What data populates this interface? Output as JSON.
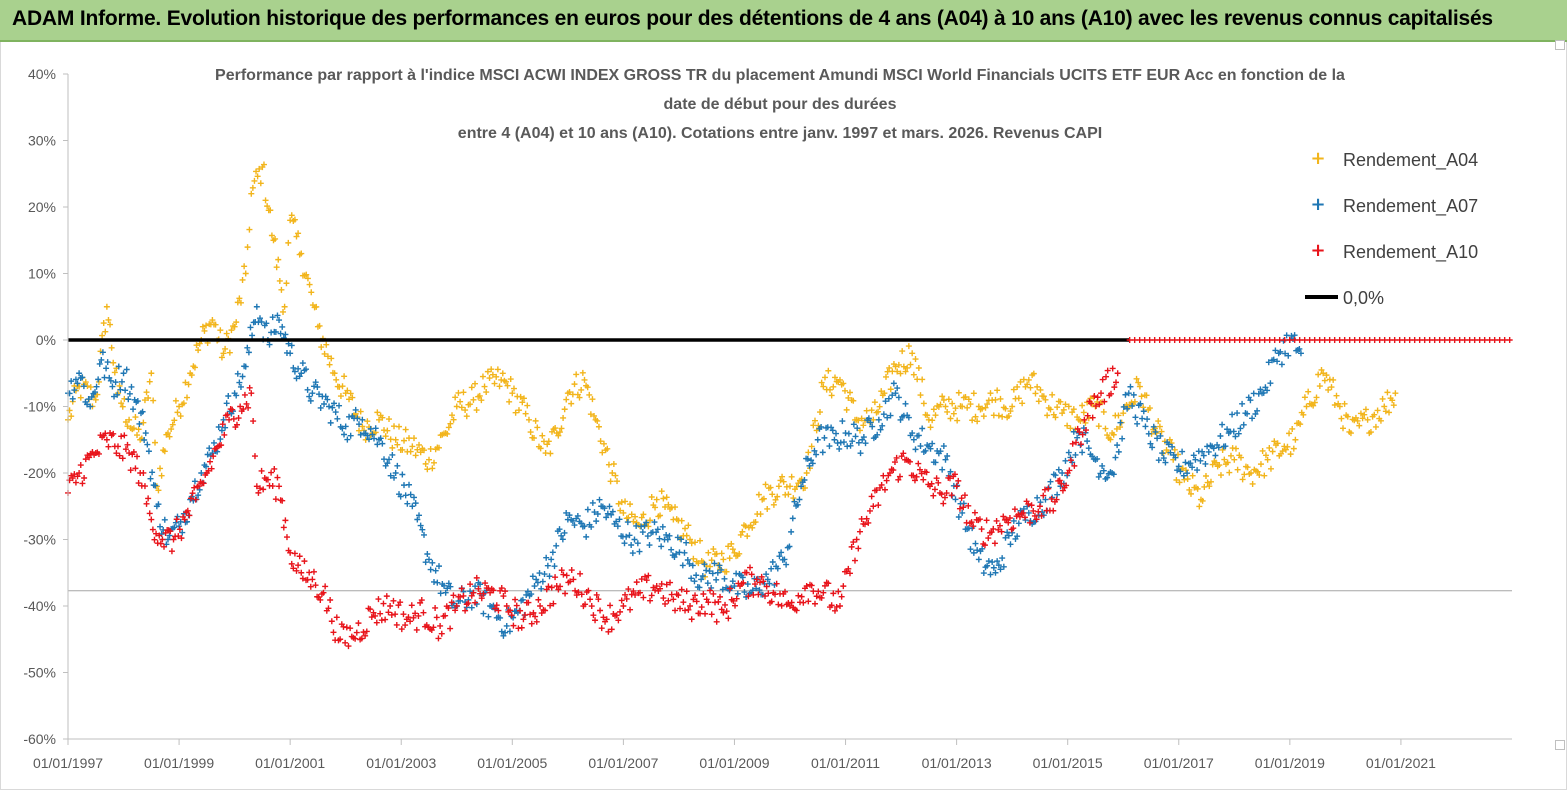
{
  "banner": {
    "title": "ADAM Informe. Evolution historique des performances en euros pour des détentions de 4 ans (A04) à 10 ans (A10) avec les revenus connus capitalisés",
    "background": "#a9d18e"
  },
  "chart_data": {
    "type": "scatter",
    "title_lines": [
      "Performance par rapport à l'indice MSCI ACWI INDEX GROSS TR  du placement Amundi MSCI World Financials UCITS ETF EUR Acc en fonction de la",
      "date de début pour des durées",
      "entre 4 (A04) et 10 ans (A10). Cotations entre janv. 1997 et mars. 2026. Revenus CAPI"
    ],
    "ylim": [
      -60,
      40
    ],
    "ytick_values": [
      40,
      30,
      20,
      10,
      0,
      -10,
      -20,
      -30,
      -40,
      -50,
      -60
    ],
    "ytick_labels": [
      "40%",
      "30%",
      "20%",
      "10%",
      "0%",
      "-10%",
      "-20%",
      "-30%",
      "-40%",
      "-50%",
      "-60%"
    ],
    "xlim": [
      1997.0,
      2023.0
    ],
    "xtick_values": [
      1997,
      1999,
      2001,
      2003,
      2005,
      2007,
      2009,
      2011,
      2013,
      2015,
      2017,
      2019,
      2021
    ],
    "xtick_labels": [
      "01/01/1997",
      "01/01/1999",
      "01/01/2001",
      "01/01/2003",
      "01/01/2005",
      "01/01/2007",
      "01/01/2009",
      "01/01/2011",
      "01/01/2013",
      "01/01/2015",
      "01/01/2017",
      "01/01/2019",
      "01/01/2021"
    ],
    "reference_line": {
      "name": "0,0%",
      "value": 0,
      "color": "#000000"
    },
    "lower_gridline_value": -37.7,
    "legend": {
      "position": "top-right",
      "entries": [
        "Rendement_A04",
        "Rendement_A07",
        "Rendement_A10",
        "0,0%"
      ]
    },
    "series": [
      {
        "name": "Rendement_A04",
        "color": "#f2b51c",
        "x": [
          1997.0,
          1997.2,
          1997.5,
          1997.7,
          1997.9,
          1998.1,
          1998.3,
          1998.5,
          1998.6,
          1998.8,
          1999.0,
          1999.2,
          1999.4,
          1999.6,
          1999.8,
          2000.0,
          2000.2,
          2000.3,
          2000.5,
          2000.7,
          2000.9,
          2001.0,
          2001.2,
          2001.5,
          2001.8,
          2002.0,
          2002.3,
          2002.6,
          2002.9,
          2003.2,
          2003.5,
          2003.8,
          2004.0,
          2004.3,
          2004.5,
          2004.8,
          2005.0,
          2005.3,
          2005.6,
          2005.8,
          2006.0,
          2006.3,
          2006.5,
          2006.8,
          2007.0,
          2007.3,
          2007.6,
          2007.9,
          2008.2,
          2008.5,
          2008.8,
          2009.0,
          2009.2,
          2009.5,
          2009.8,
          2010.0,
          2010.3,
          2010.6,
          2010.9,
          2011.2,
          2011.5,
          2011.7,
          2011.9,
          2012.2,
          2012.5,
          2012.8,
          2013.1,
          2013.4,
          2013.7,
          2014.0,
          2014.3,
          2014.6,
          2014.9,
          2015.2,
          2015.5,
          2015.8,
          2016.0,
          2016.3,
          2016.6,
          2016.9,
          2017.1,
          2017.4,
          2017.7,
          2018.0,
          2018.3,
          2018.6,
          2018.9,
          2019.1,
          2019.3,
          2019.6,
          2019.9,
          2020.1,
          2020.4,
          2020.7,
          2020.9
        ],
        "y": [
          -12,
          -7,
          -9,
          5,
          -8,
          -12,
          -15,
          -5,
          -22,
          -14,
          -10,
          -5,
          0,
          3,
          -2,
          2,
          10,
          22,
          26,
          15,
          5,
          18,
          13,
          2,
          -5,
          -8,
          -13,
          -12,
          -15,
          -16,
          -18,
          -14,
          -10,
          -9,
          -7,
          -6,
          -8,
          -12,
          -17,
          -14,
          -8,
          -6,
          -12,
          -20,
          -26,
          -28,
          -24,
          -27,
          -30,
          -34,
          -33,
          -32,
          -28,
          -24,
          -22,
          -22,
          -20,
          -7,
          -6,
          -12,
          -12,
          -8,
          -4,
          -2,
          -12,
          -10,
          -10,
          -10,
          -9,
          -10,
          -6,
          -9,
          -11,
          -12,
          -10,
          -14,
          -11,
          -7,
          -14,
          -18,
          -21,
          -24,
          -19,
          -18,
          -20,
          -18,
          -16,
          -15,
          -10,
          -5,
          -10,
          -14,
          -12,
          -10,
          -8
        ]
      },
      {
        "name": "Rendement_A07",
        "color": "#1f77b4",
        "x": [
          1997.0,
          1997.2,
          1997.4,
          1997.6,
          1997.8,
          1998.0,
          1998.2,
          1998.4,
          1998.6,
          1998.8,
          1999.0,
          1999.2,
          1999.4,
          1999.6,
          1999.8,
          2000.0,
          2000.2,
          2000.4,
          2000.6,
          2000.8,
          2001.0,
          2001.2,
          2001.4,
          2001.7,
          2002.0,
          2002.3,
          2002.6,
          2002.9,
          2003.2,
          2003.5,
          2003.8,
          2004.0,
          2004.3,
          2004.6,
          2004.9,
          2005.1,
          2005.4,
          2005.7,
          2006.0,
          2006.3,
          2006.6,
          2006.9,
          2007.2,
          2007.5,
          2007.8,
          2008.1,
          2008.4,
          2008.7,
          2009.0,
          2009.3,
          2009.6,
          2009.9,
          2010.2,
          2010.5,
          2010.8,
          2011.0,
          2011.3,
          2011.6,
          2011.9,
          2012.2,
          2012.5,
          2012.8,
          2013.1,
          2013.4,
          2013.7,
          2014.0,
          2014.3,
          2014.6,
          2014.9,
          2015.2,
          2015.5,
          2015.8,
          2016.1,
          2016.4,
          2016.7,
          2017.0,
          2017.3,
          2017.6,
          2017.9,
          2018.2,
          2018.5,
          2018.8,
          2019.0,
          2019.2
        ],
        "y": [
          -8,
          -5,
          -10,
          -3,
          -7,
          -5,
          -9,
          -14,
          -25,
          -30,
          -28,
          -24,
          -20,
          -17,
          -12,
          -8,
          -4,
          5,
          0,
          3,
          -2,
          -5,
          -8,
          -10,
          -13,
          -12,
          -15,
          -20,
          -25,
          -33,
          -38,
          -40,
          -38,
          -40,
          -43,
          -41,
          -37,
          -33,
          -27,
          -28,
          -25,
          -28,
          -30,
          -29,
          -30,
          -32,
          -36,
          -35,
          -37,
          -38,
          -36,
          -33,
          -22,
          -15,
          -15,
          -14,
          -15,
          -12,
          -8,
          -14,
          -16,
          -18,
          -26,
          -33,
          -35,
          -29,
          -26,
          -24,
          -20,
          -14,
          -18,
          -20,
          -8,
          -13,
          -17,
          -19,
          -18,
          -16,
          -14,
          -11,
          -8,
          -2,
          0,
          -2
        ]
      },
      {
        "name": "Rendement_A10",
        "color": "#e8141b",
        "x": [
          1997.0,
          1997.2,
          1997.5,
          1997.7,
          1997.9,
          1998.1,
          1998.3,
          1998.5,
          1998.7,
          1998.9,
          1999.1,
          1999.3,
          1999.5,
          1999.7,
          1999.9,
          2000.1,
          2000.3,
          2000.4,
          2000.6,
          2000.8,
          2001.0,
          2001.2,
          2001.4,
          2001.6,
          2001.9,
          2002.2,
          2002.5,
          2002.8,
          2003.1,
          2003.4,
          2003.7,
          2004.0,
          2004.3,
          2004.6,
          2004.9,
          2005.2,
          2005.5,
          2005.8,
          2006.1,
          2006.4,
          2006.7,
          2007.0,
          2007.3,
          2007.6,
          2007.9,
          2008.2,
          2008.5,
          2008.8,
          2009.1,
          2009.4,
          2009.7,
          2010.0,
          2010.3,
          2010.6,
          2010.9,
          2011.2,
          2011.5,
          2011.8,
          2012.1,
          2012.4,
          2012.7,
          2013.0,
          2013.3,
          2013.6,
          2013.9,
          2014.2,
          2014.5,
          2014.8,
          2015.0,
          2015.3,
          2015.6,
          2015.9
        ],
        "y": [
          -23,
          -20,
          -17,
          -15,
          -16,
          -17,
          -20,
          -27,
          -30,
          -30,
          -27,
          -24,
          -20,
          -16,
          -12,
          -10,
          -8,
          -22,
          -21,
          -22,
          -32,
          -35,
          -36,
          -38,
          -45,
          -44,
          -41,
          -40,
          -42,
          -41,
          -43,
          -40,
          -38,
          -38,
          -40,
          -42,
          -40,
          -37,
          -36,
          -39,
          -42,
          -40,
          -38,
          -37,
          -39,
          -40,
          -39,
          -41,
          -37,
          -36,
          -38,
          -40,
          -37,
          -38,
          -40,
          -30,
          -25,
          -20,
          -18,
          -21,
          -23,
          -22,
          -28,
          -29,
          -27,
          -26,
          -25,
          -24,
          -20,
          -12,
          -8,
          -5
        ]
      }
    ]
  }
}
